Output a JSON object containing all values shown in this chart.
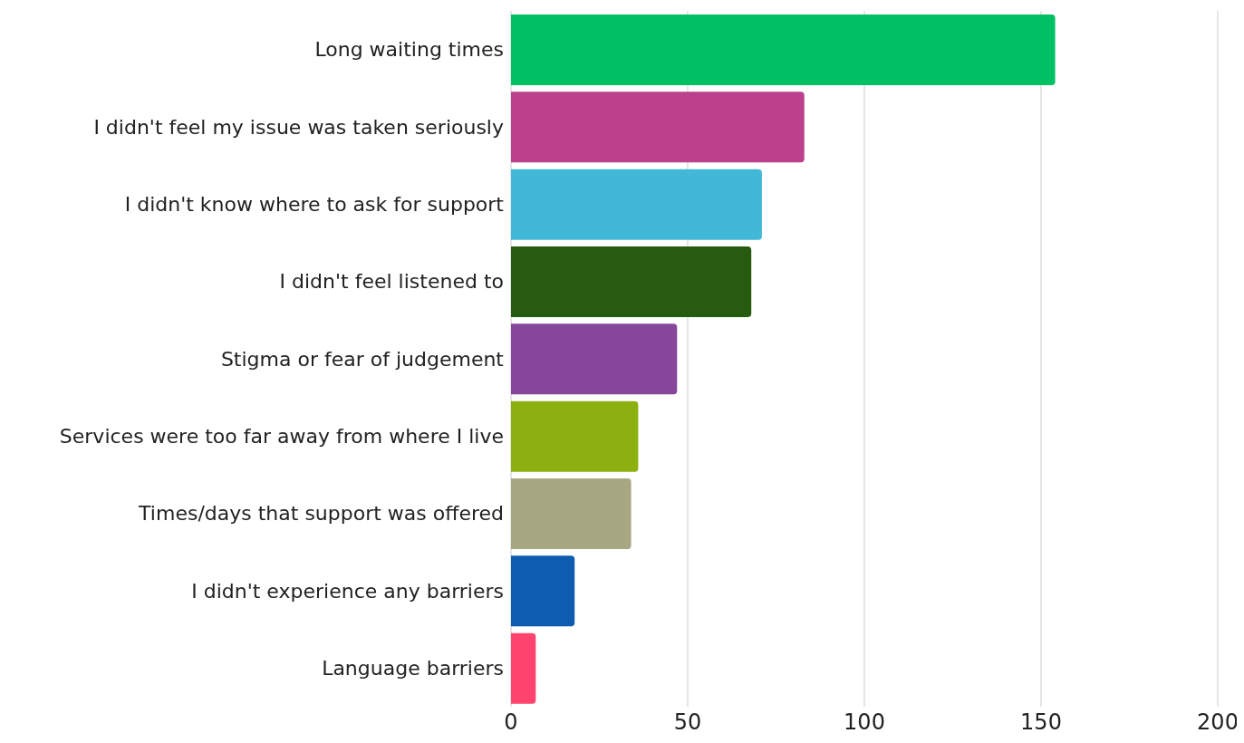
{
  "chart_data": {
    "type": "bar",
    "orientation": "horizontal",
    "categories": [
      "Long waiting times",
      "I didn't feel my issue was taken seriously",
      "I didn't know where to ask for support",
      "I didn't feel listened to",
      "Stigma or fear of judgement",
      "Services were too far away from where I live",
      "Times/days that support was offered",
      "I didn't experience any barriers",
      "Language barriers"
    ],
    "values": [
      154,
      83,
      71,
      68,
      47,
      36,
      34,
      18,
      7
    ],
    "colors": [
      "#00c065",
      "#bc408c",
      "#42b8d8",
      "#275c10",
      "#86479a",
      "#8db011",
      "#a7a783",
      "#0d5cb0",
      "#fe446e"
    ],
    "xlim": [
      0,
      200
    ],
    "xticks": [
      0,
      50,
      100,
      150,
      200
    ],
    "grid": "x"
  }
}
